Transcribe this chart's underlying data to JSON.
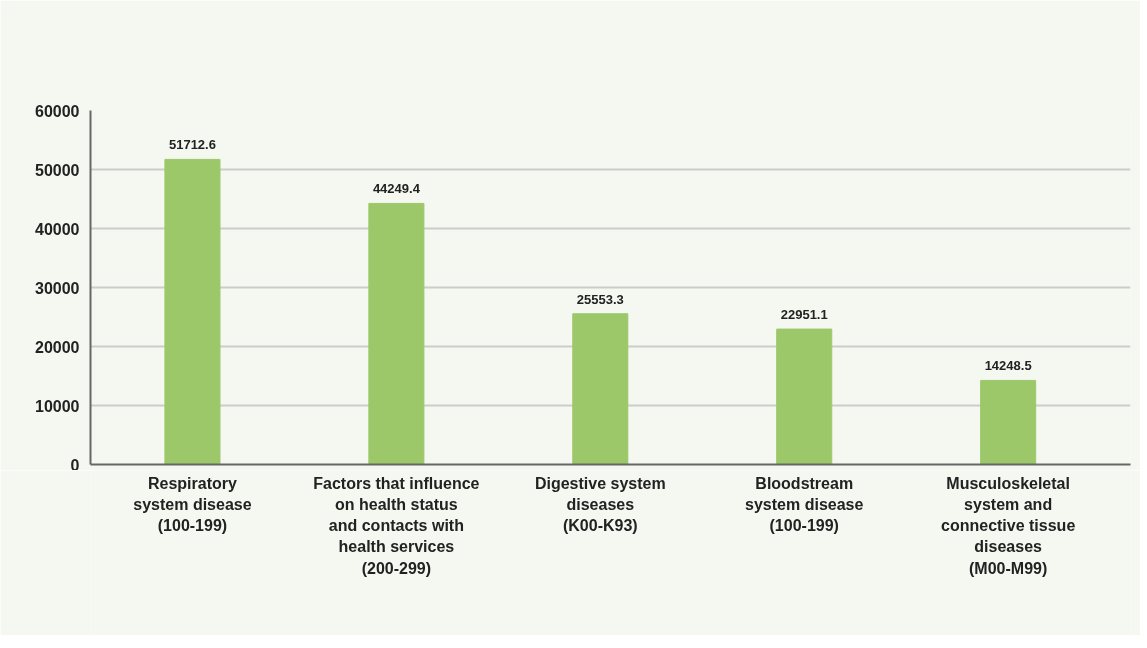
{
  "chart_data": {
    "type": "bar",
    "categories": [
      "Respiratory\nsystem disease\n(100-199)",
      "Factors that influence\non health status\nand contacts with\nhealth services\n(200-299)",
      "Digestive system\ndiseases\n(K00-K93)",
      "Bloodstream\nsystem disease\n(100-199)",
      "Musculoskeletal\nsystem and\nconnective tissue\ndiseases\n(M00-M99)"
    ],
    "values": [
      51712.6,
      44249.4,
      25553.3,
      22951.1,
      14248.5
    ],
    "color": "#9dc86a",
    "ylim": [
      0,
      60000
    ],
    "yticks": [
      0,
      10000,
      20000,
      30000,
      40000,
      50000,
      60000
    ],
    "grid": "y",
    "data_labels": true
  }
}
